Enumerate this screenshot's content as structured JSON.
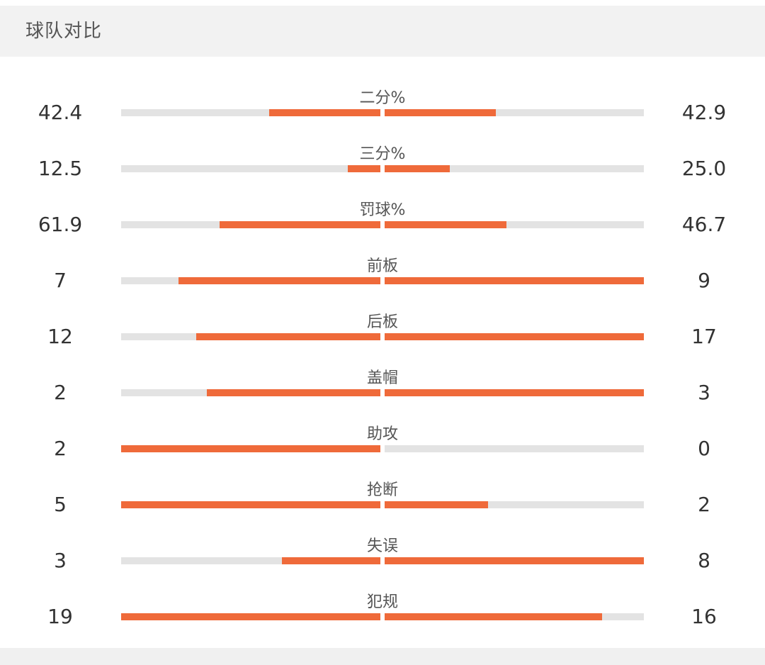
{
  "header": {
    "title": "球队对比"
  },
  "accent_color": "#ef6a3a",
  "track_color": "#e3e3e3",
  "stats": [
    {
      "label": "二分%",
      "left": "42.4",
      "right": "42.9",
      "left_fill": 0.43,
      "right_fill": 0.43
    },
    {
      "label": "三分%",
      "left": "12.5",
      "right": "25.0",
      "left_fill": 0.125,
      "right_fill": 0.25
    },
    {
      "label": "罚球%",
      "left": "61.9",
      "right": "46.7",
      "left_fill": 0.62,
      "right_fill": 0.47
    },
    {
      "label": "前板",
      "left": "7",
      "right": "9",
      "left_fill": 0.78,
      "right_fill": 1.0
    },
    {
      "label": "后板",
      "left": "12",
      "right": "17",
      "left_fill": 0.71,
      "right_fill": 1.0
    },
    {
      "label": "盖帽",
      "left": "2",
      "right": "3",
      "left_fill": 0.67,
      "right_fill": 1.0
    },
    {
      "label": "助攻",
      "left": "2",
      "right": "0",
      "left_fill": 1.0,
      "right_fill": 0.0
    },
    {
      "label": "抢断",
      "left": "5",
      "right": "2",
      "left_fill": 1.0,
      "right_fill": 0.4
    },
    {
      "label": "失误",
      "left": "3",
      "right": "8",
      "left_fill": 0.38,
      "right_fill": 1.0
    },
    {
      "label": "犯规",
      "left": "19",
      "right": "16",
      "left_fill": 1.0,
      "right_fill": 0.84
    }
  ]
}
